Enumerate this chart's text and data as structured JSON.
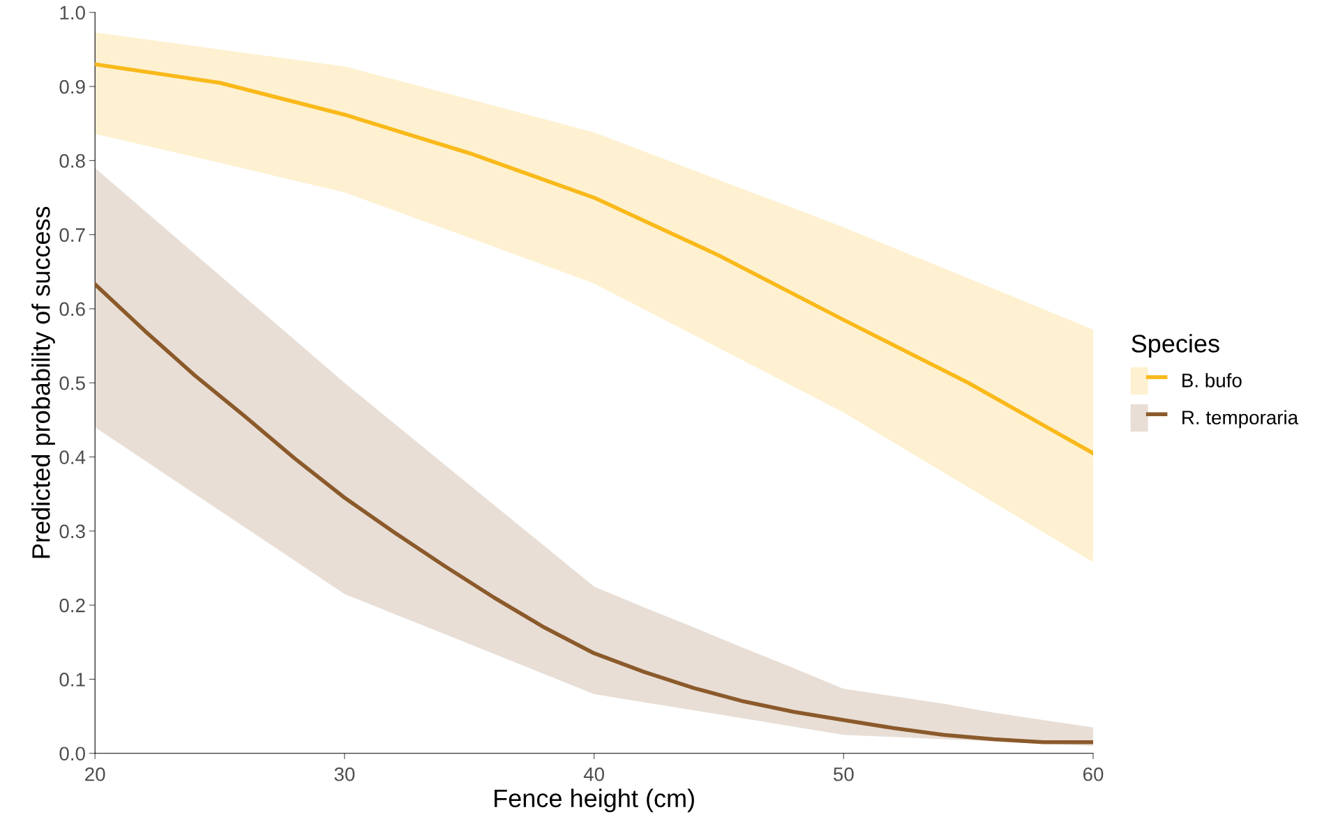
{
  "chart_data": {
    "type": "line",
    "xlabel": "Fence height (cm)",
    "ylabel": "Predicted probability of success",
    "legend_title": "Species",
    "legend": "right",
    "grid": false,
    "xlim": [
      20,
      60
    ],
    "xticks": [
      20,
      30,
      40,
      50,
      60
    ],
    "ylim": [
      0,
      1
    ],
    "yticks": [
      {
        "value": 0,
        "label": "0.0"
      },
      0.1,
      0.2,
      0.3,
      0.4,
      0.5,
      0.6,
      0.7,
      0.8,
      0.9,
      {
        "value": 1,
        "label": "1.0"
      }
    ],
    "series": [
      {
        "name": "B. bufo",
        "color": "#f9b91a",
        "x": [
          20,
          25,
          30,
          35,
          40,
          45,
          50,
          55,
          60
        ],
        "values": [
          0.93,
          0.905,
          0.862,
          0.81,
          0.75,
          0.672,
          0.585,
          0.5,
          0.405
        ],
        "upper": [
          0.973,
          0.95,
          0.927,
          0.883,
          0.838,
          0.774,
          0.71,
          0.641,
          0.572
        ],
        "lower": [
          0.836,
          0.797,
          0.757,
          0.696,
          0.634,
          0.547,
          0.46,
          0.359,
          0.258
        ]
      },
      {
        "name": "R. temporaria",
        "color": "#8b5a2b",
        "x": [
          20,
          22,
          24,
          26,
          28,
          30,
          32,
          34,
          36,
          38,
          40,
          42,
          44,
          46,
          48,
          50,
          52,
          54,
          56,
          58,
          60
        ],
        "values": [
          0.633,
          0.57,
          0.51,
          0.455,
          0.398,
          0.345,
          0.298,
          0.253,
          0.21,
          0.17,
          0.135,
          0.11,
          0.088,
          0.07,
          0.056,
          0.045,
          0.034,
          0.025,
          0.019,
          0.015,
          0.015
        ],
        "upper": [
          0.79,
          0.732,
          0.674,
          0.616,
          0.558,
          0.5,
          0.445,
          0.39,
          0.335,
          0.28,
          0.225,
          0.197,
          0.17,
          0.142,
          0.115,
          0.087,
          0.077,
          0.067,
          0.055,
          0.045,
          0.035
        ],
        "lower": [
          0.44,
          0.395,
          0.35,
          0.305,
          0.26,
          0.215,
          0.188,
          0.161,
          0.134,
          0.107,
          0.08,
          0.069,
          0.058,
          0.047,
          0.036,
          0.025,
          0.022,
          0.019,
          0.016,
          0.013,
          0.01
        ]
      }
    ]
  }
}
